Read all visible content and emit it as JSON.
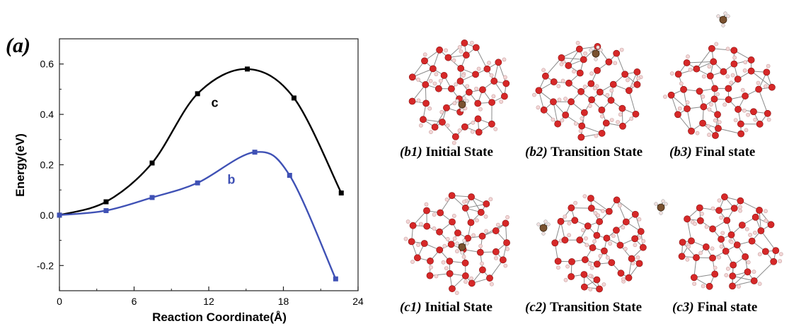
{
  "panel_label": "(a)",
  "chart_data": {
    "type": "line",
    "title": "",
    "xlabel": "Reaction Coordinate(Å)",
    "ylabel": "Energy(eV)",
    "xlim": [
      0,
      24
    ],
    "ylim": [
      -0.3,
      0.7
    ],
    "xticks": [
      0,
      6,
      12,
      18,
      24
    ],
    "yticks": [
      -0.2,
      0.0,
      0.2,
      0.4,
      0.6
    ],
    "xtick_labels": [
      "0",
      "6",
      "12",
      "18",
      "24"
    ],
    "ytick_labels": [
      "-0.2",
      "0.0",
      "0.2",
      "0.4",
      "0.6"
    ],
    "grid": false,
    "series": [
      {
        "name": "c",
        "color": "#000000",
        "x": [
          0,
          3.75,
          7.45,
          11.1,
          15.1,
          18.85,
          22.65
        ],
        "y": [
          0.0,
          0.053,
          0.207,
          0.482,
          0.58,
          0.465,
          0.088
        ]
      },
      {
        "name": "b",
        "color": "#3f51b5",
        "x": [
          0,
          3.75,
          7.45,
          11.1,
          15.7,
          18.5,
          22.2
        ],
        "y": [
          0.0,
          0.018,
          0.07,
          0.128,
          0.25,
          0.158,
          -0.253
        ]
      }
    ]
  },
  "structures": {
    "row_b": [
      {
        "tag": "(b1)",
        "label": "Initial State",
        "molecule": "inside"
      },
      {
        "tag": "(b2)",
        "label": "Transition State",
        "molecule": "top"
      },
      {
        "tag": "(b3)",
        "label": "Final state",
        "molecule": "outside-top"
      }
    ],
    "row_c": [
      {
        "tag": "(c1)",
        "label": "Initial State",
        "molecule": "inside"
      },
      {
        "tag": "(c2)",
        "label": "Transition State",
        "molecule": "left"
      },
      {
        "tag": "(c3)",
        "label": "Final state",
        "molecule": "outside-left"
      }
    ]
  },
  "colors": {
    "oxygen": "#d62828",
    "hydrogen": "#f3d6d6",
    "carbon": "#7a5230",
    "bond": "#8a8a8a"
  }
}
